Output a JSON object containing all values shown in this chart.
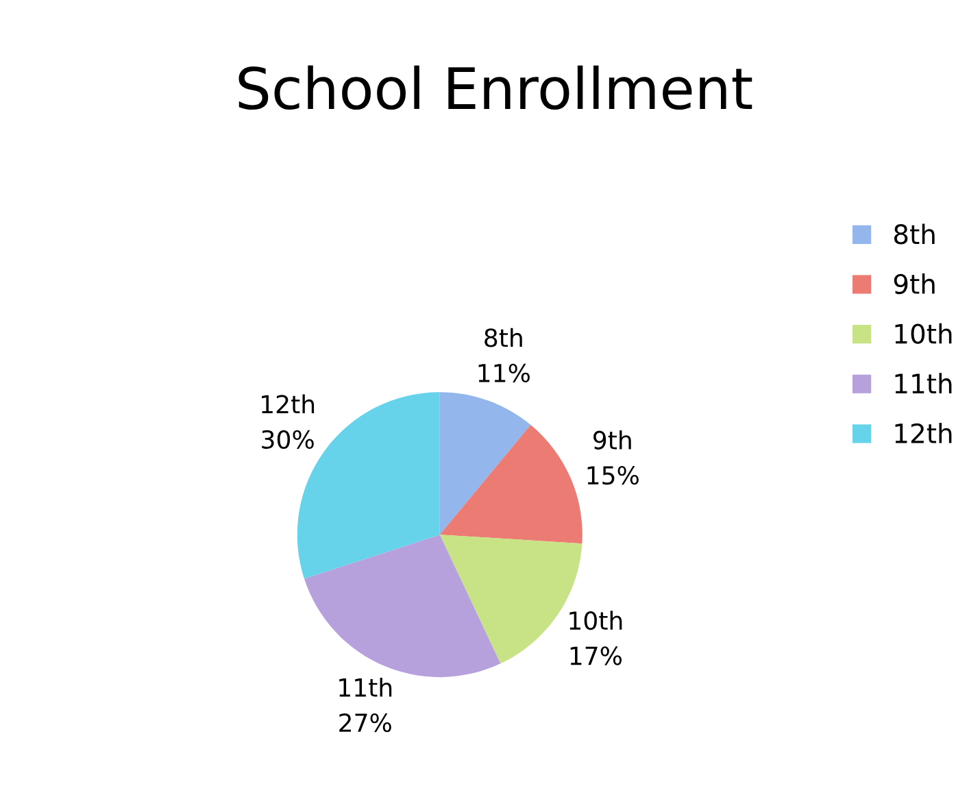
{
  "chart_data": {
    "type": "pie",
    "title": "School Enrollment",
    "categories": [
      "8th",
      "9th",
      "10th",
      "11th",
      "12th"
    ],
    "values": [
      11,
      15,
      17,
      27,
      30
    ],
    "value_labels": [
      "11%",
      "15%",
      "17%",
      "27%",
      "30%"
    ],
    "colors": [
      "#93b7ec",
      "#ec7b74",
      "#c8e385",
      "#b7a1dc",
      "#67d3ea"
    ],
    "legend": "right"
  }
}
